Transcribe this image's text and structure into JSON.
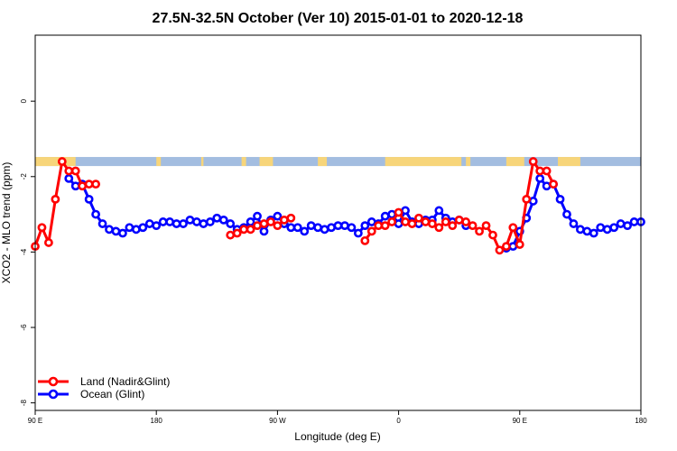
{
  "chart_data": {
    "type": "line",
    "title": "27.5N-32.5N October (Ver 10)   2015-01-01 to 2020-12-18",
    "xlabel": "Longitude (deg E)",
    "ylabel": "XCO2 - MLO trend (ppm)",
    "xlim": [
      -90,
      180
    ],
    "ylim": [
      -8.2,
      1.75
    ],
    "x_ticks": [
      {
        "value": -90,
        "label": "90 E"
      },
      {
        "value": -36,
        "label": "180"
      },
      {
        "value": 18,
        "label": "90 W"
      },
      {
        "value": 72,
        "label": "0"
      },
      {
        "value": 126,
        "label": "90 E"
      },
      {
        "value": 180,
        "label": "180"
      }
    ],
    "y_ticks": [
      {
        "value": 0,
        "label": "0"
      },
      {
        "value": -2,
        "label": "-2"
      },
      {
        "value": -4,
        "label": "-4"
      },
      {
        "value": -6,
        "label": "-6"
      },
      {
        "value": -8,
        "label": "-8"
      }
    ],
    "grid": false,
    "legend_position": "bottom-left",
    "surface_strip": {
      "y_range": [
        -1.72,
        -1.48
      ],
      "ocean_color": "#a3bde0",
      "land_color": "#f7d57a",
      "land_segments": [
        [
          -90,
          -72
        ],
        [
          2,
          4
        ],
        [
          10,
          16
        ],
        [
          -16,
          -15
        ],
        [
          -36,
          -34
        ],
        [
          36,
          40
        ],
        [
          66,
          100
        ],
        [
          102,
          104
        ],
        [
          120,
          128
        ],
        [
          143,
          153
        ]
      ]
    },
    "series": [
      {
        "name": "Land (Nadir&Glint)",
        "color": "#ff0000",
        "segments": [
          {
            "x": [
              -90,
              -87,
              -84,
              -81,
              -78,
              -75,
              -72,
              -69,
              -66,
              -63
            ],
            "y": [
              -3.85,
              -3.35,
              -3.75,
              -2.6,
              -1.6,
              -1.85,
              -1.85,
              -2.25,
              -2.2,
              -2.2
            ]
          },
          {
            "x": [
              -3,
              0,
              3,
              6,
              9,
              12,
              15,
              18,
              21,
              24
            ],
            "y": [
              -3.55,
              -3.5,
              -3.4,
              -3.4,
              -3.3,
              -3.25,
              -3.2,
              -3.3,
              -3.15,
              -3.1
            ]
          },
          {
            "x": [
              57,
              60,
              63,
              66,
              69,
              72,
              75,
              78,
              81,
              84,
              87,
              90,
              93,
              96,
              99,
              102,
              105,
              108,
              111,
              114,
              117,
              120,
              123,
              126,
              129,
              132,
              135,
              138,
              141
            ],
            "y": [
              -3.7,
              -3.45,
              -3.3,
              -3.3,
              -3.2,
              -2.95,
              -3.2,
              -3.25,
              -3.1,
              -3.2,
              -3.25,
              -3.35,
              -3.2,
              -3.3,
              -3.15,
              -3.2,
              -3.3,
              -3.45,
              -3.3,
              -3.55,
              -3.95,
              -3.85,
              -3.35,
              -3.8,
              -2.6,
              -1.6,
              -1.85,
              -1.85,
              -2.2
            ]
          }
        ]
      },
      {
        "name": "Ocean (Glint)",
        "color": "#0000ff",
        "segments": [
          {
            "x": [
              -75,
              -72,
              -69,
              -66,
              -63,
              -60,
              -57,
              -54,
              -51,
              -48,
              -45,
              -42,
              -39,
              -36,
              -33,
              -30,
              -27,
              -24,
              -21,
              -18,
              -15,
              -12,
              -9,
              -6,
              -3,
              0,
              3,
              6,
              9,
              12,
              15,
              18,
              21,
              24,
              27,
              30,
              33,
              36,
              39,
              42,
              45,
              48,
              51,
              54,
              57,
              60,
              63,
              66,
              69,
              72,
              75,
              78,
              81,
              84,
              87,
              90,
              93,
              96,
              99,
              102
            ],
            "y": [
              -2.05,
              -2.25,
              -2.2,
              -2.6,
              -3.0,
              -3.25,
              -3.4,
              -3.45,
              -3.5,
              -3.35,
              -3.4,
              -3.35,
              -3.25,
              -3.3,
              -3.2,
              -3.2,
              -3.25,
              -3.25,
              -3.15,
              -3.2,
              -3.25,
              -3.2,
              -3.1,
              -3.15,
              -3.25,
              -3.4,
              -3.35,
              -3.2,
              -3.05,
              -3.45,
              -3.15,
              -3.05,
              -3.25,
              -3.35,
              -3.35,
              -3.45,
              -3.3,
              -3.35,
              -3.4,
              -3.35,
              -3.3,
              -3.3,
              -3.35,
              -3.5,
              -3.3,
              -3.2,
              -3.25,
              -3.05,
              -3.0,
              -3.25,
              -2.9,
              -3.2,
              -3.25,
              -3.15,
              -3.15,
              -2.9,
              -3.1,
              -3.2,
              -3.15,
              -3.3
            ]
          },
          {
            "x": [
              120,
              123,
              126,
              129,
              132,
              135,
              138,
              141,
              144,
              147,
              150,
              153,
              156,
              159,
              162,
              165,
              168,
              171,
              174,
              177,
              180
            ],
            "y": [
              -3.9,
              -3.85,
              -3.45,
              -3.1,
              -2.65,
              -2.05,
              -2.25,
              -2.2,
              -2.6,
              -3.0,
              -3.25,
              -3.4,
              -3.45,
              -3.5,
              -3.35,
              -3.4,
              -3.35,
              -3.25,
              -3.3,
              -3.2,
              -3.2
            ]
          }
        ]
      }
    ]
  }
}
